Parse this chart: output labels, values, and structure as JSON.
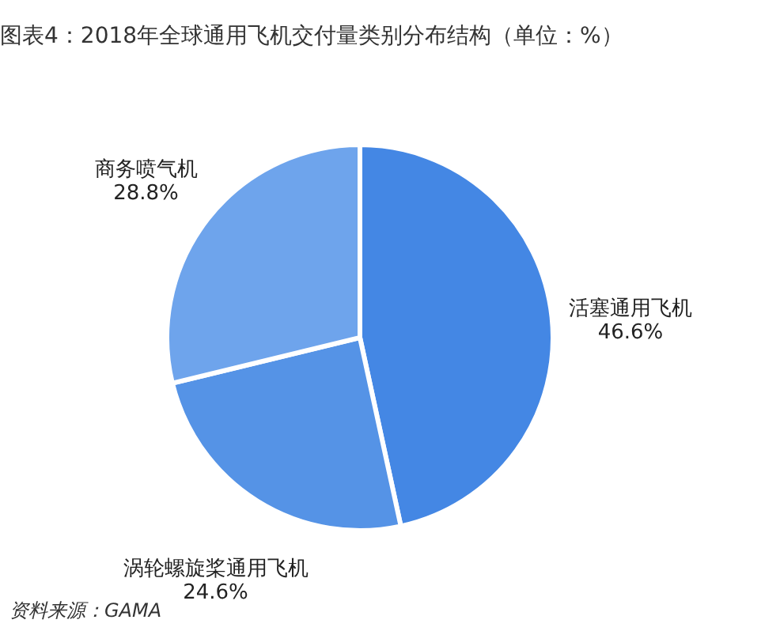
{
  "chart_data": {
    "type": "pie",
    "title": "图表4：2018年全球通用飞机交付量类别分布结构（单位：%）",
    "categories": [
      "活塞通用飞机",
      "涡轮螺旋桨通用飞机",
      "商务喷气机"
    ],
    "values": [
      46.6,
      24.6,
      28.8
    ],
    "colors": [
      "#4487e4",
      "#5593e6",
      "#6ea4ec"
    ],
    "value_labels": [
      "46.6%",
      "24.6%",
      "28.8%"
    ],
    "annotations": [
      "资料来源：GAMA"
    ]
  }
}
